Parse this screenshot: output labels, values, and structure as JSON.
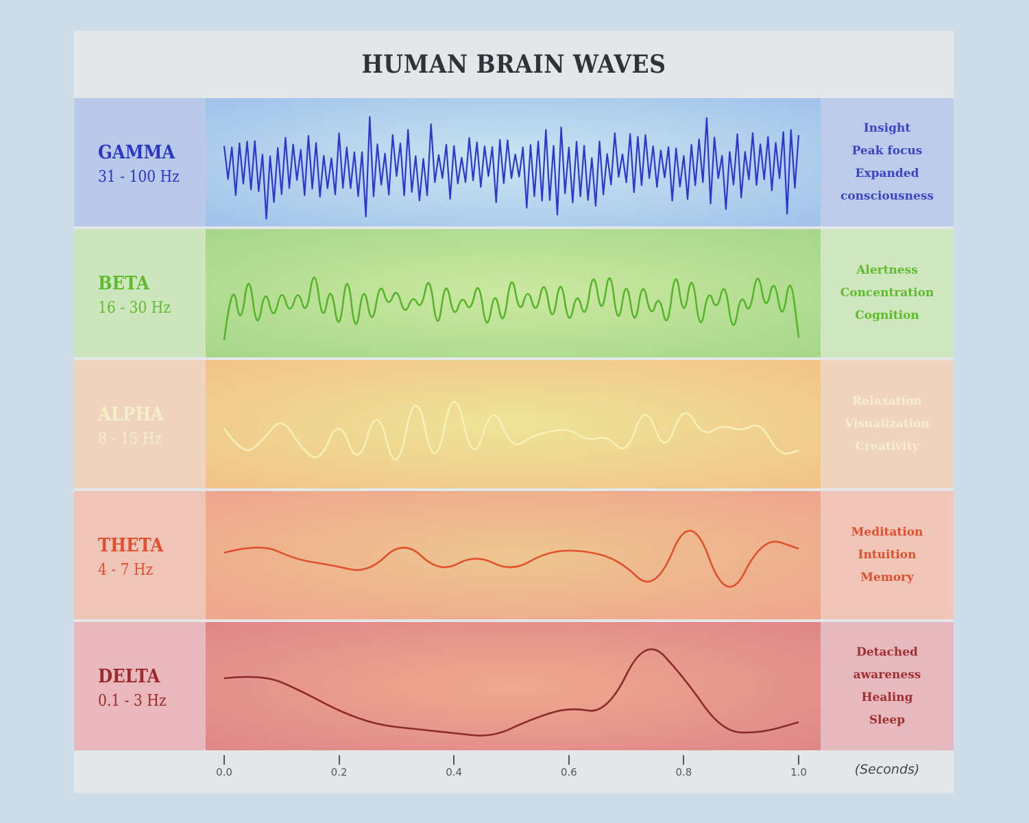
{
  "title": "HUMAN BRAIN WAVES",
  "bands": [
    {
      "name": "GAMMA",
      "freq": "31 - 100 Hz",
      "descriptions": [
        "Insight",
        "Peak focus",
        "Expanded",
        "consciousness"
      ],
      "label_color": "#2a36c4",
      "desc_color": "#3a44c8",
      "wave_color": "#2c36d0",
      "label_bg": "#b9c9e9",
      "desc_bg": "#bccbe9",
      "wave_bg_center": "#c9e6f1",
      "wave_bg_edge": "#a0c2ea"
    },
    {
      "name": "BETA",
      "freq": "16 - 30 Hz",
      "descriptions": [
        "Alertness",
        "Concentration",
        "Cognition"
      ],
      "label_color": "#5fba2e",
      "desc_color": "#5fba2e",
      "wave_color": "#55b52a",
      "label_bg": "#cde6bd",
      "desc_bg": "#cfe6bf",
      "wave_bg_center": "#cce9a0",
      "wave_bg_edge": "#a5d68a"
    },
    {
      "name": "ALPHA",
      "freq": "8 - 15 Hz",
      "descriptions": [
        "Relaxation",
        "Visualization",
        "Creativity"
      ],
      "label_color": "#f4efc7",
      "desc_color": "#f6efcc",
      "wave_color": "#f7f0b8",
      "label_bg": "#efd3bd",
      "desc_bg": "#f0d4bd",
      "wave_bg_center": "#ede497",
      "wave_bg_edge": "#f2c386"
    },
    {
      "name": "THETA",
      "freq": "4 - 7 Hz",
      "descriptions": [
        "Meditation",
        "Intuition",
        "Memory"
      ],
      "label_color": "#e04f2e",
      "desc_color": "#e04f2e",
      "wave_color": "#e0502a",
      "label_bg": "#efc5b8",
      "desc_bg": "#f0c6b8",
      "wave_bg_center": "#eec68f",
      "wave_bg_edge": "#efa58e"
    },
    {
      "name": "DELTA",
      "freq": "0.1 - 3 Hz",
      "descriptions": [
        "Detached",
        "awareness",
        "Healing",
        "Sleep"
      ],
      "label_color": "#9c2a2a",
      "desc_color": "#a33030",
      "wave_color": "#8a2a2a",
      "label_bg": "#e8b8bd",
      "desc_bg": "#e6b9bf",
      "wave_bg_center": "#efaa8f",
      "wave_bg_edge": "#de8688"
    }
  ],
  "axis": {
    "ticks": [
      "0.0",
      "0.2",
      "0.4",
      "0.6",
      "0.8",
      "1.0"
    ],
    "unit": "(Seconds)"
  }
}
